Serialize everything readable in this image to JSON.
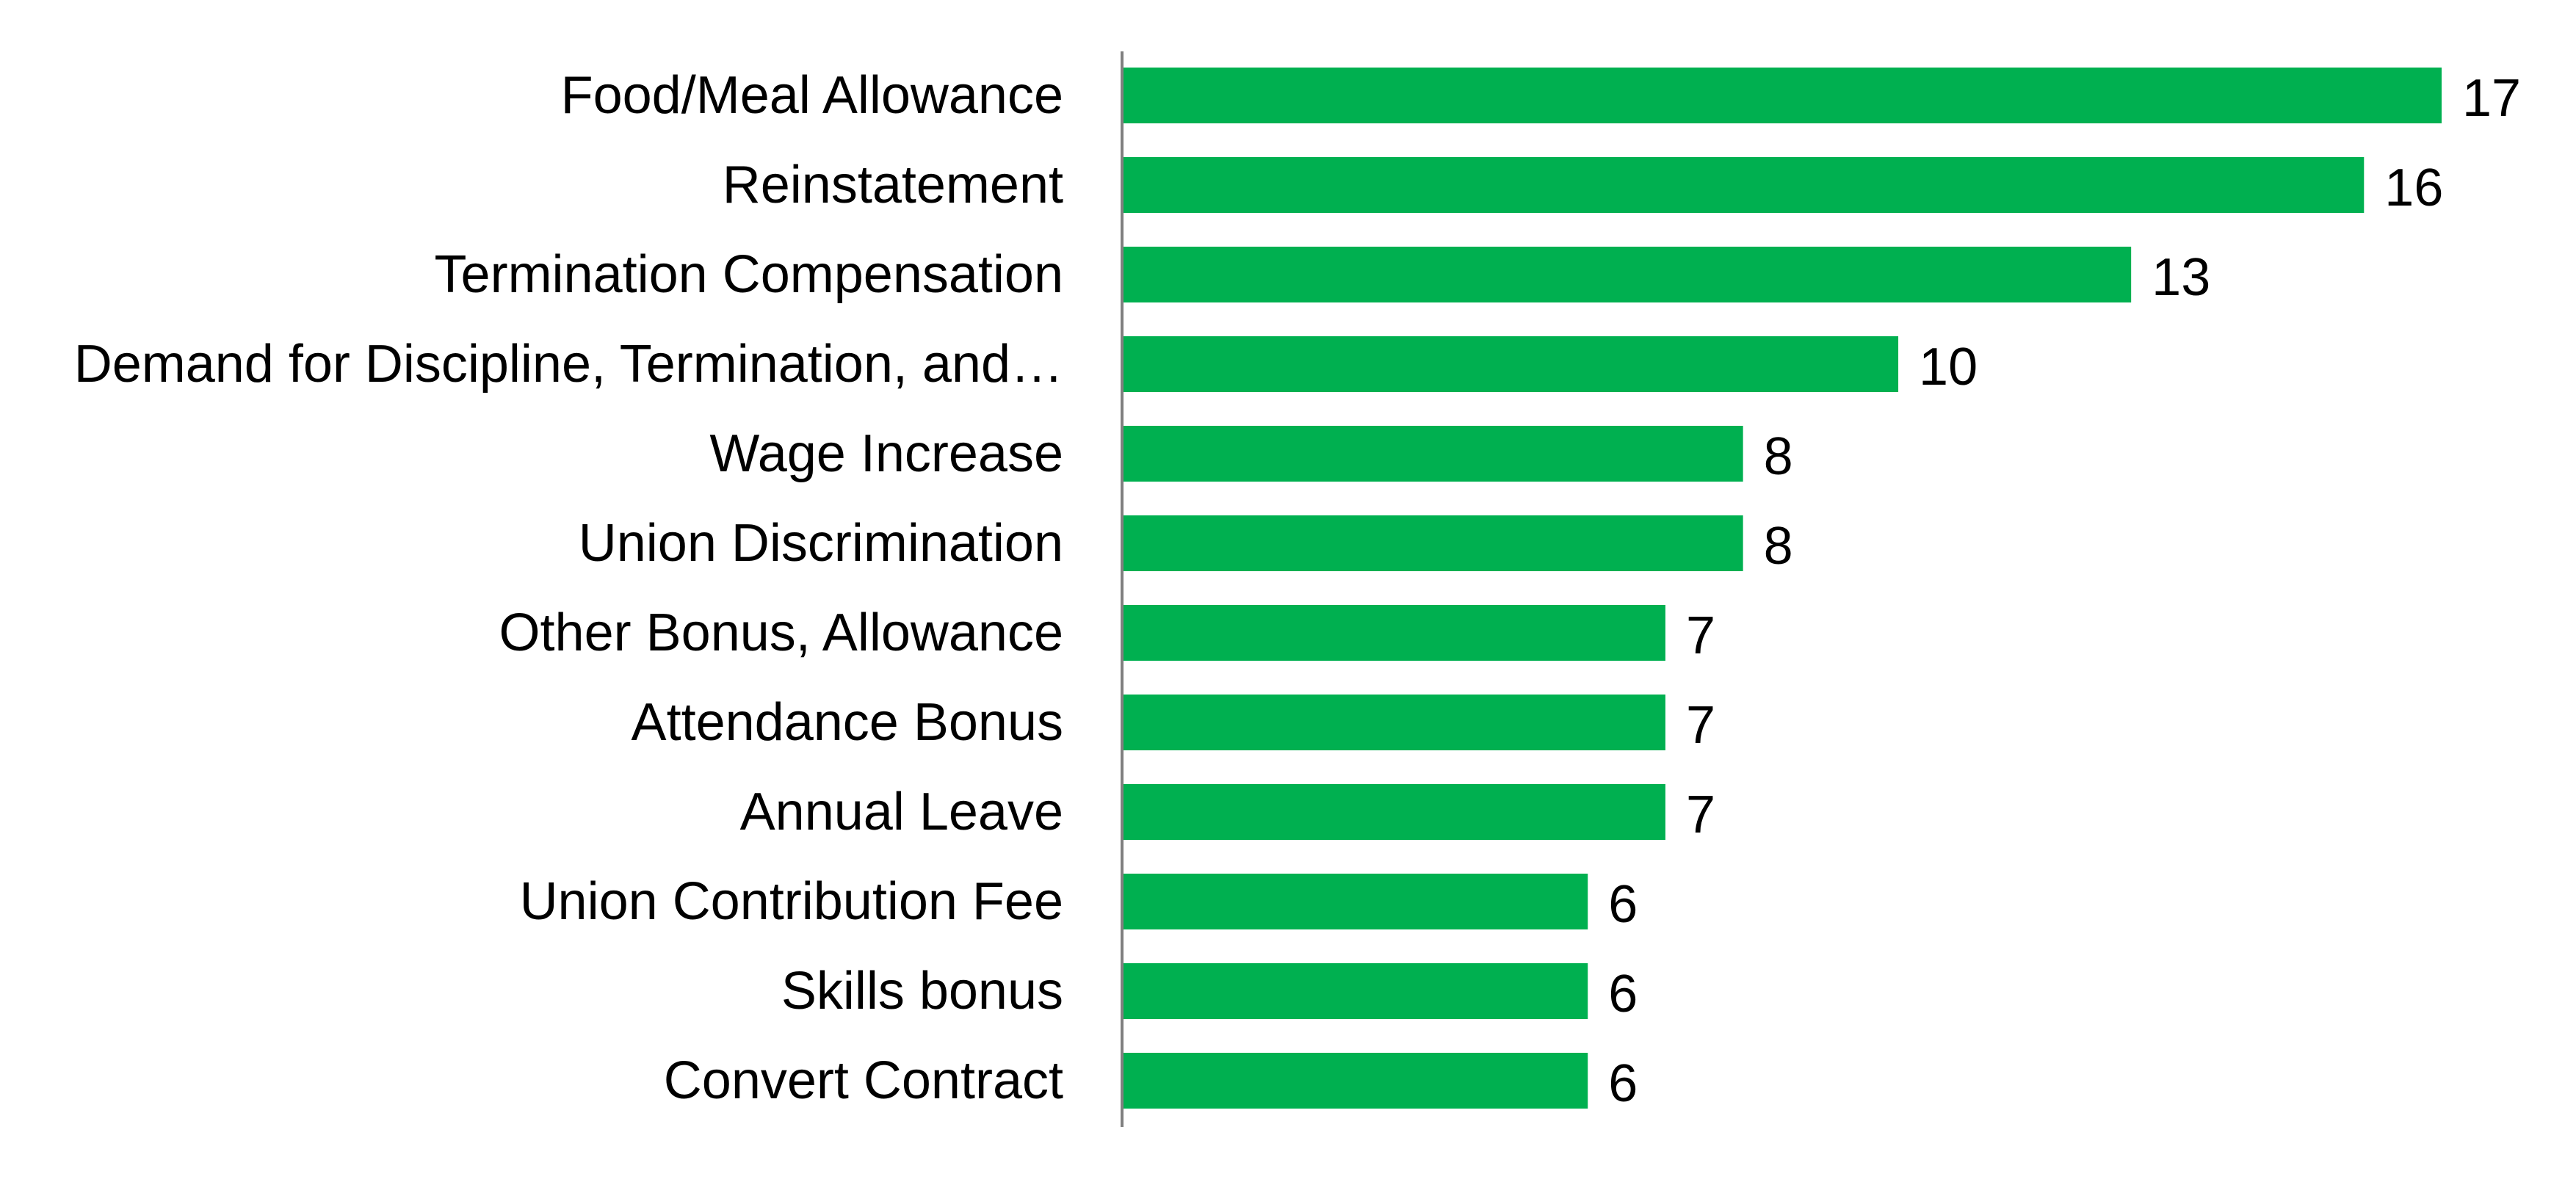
{
  "colors": {
    "bar": "#00b050",
    "axis": "#808080",
    "text": "#000000",
    "background": "#ffffff"
  },
  "chart_data": {
    "type": "bar",
    "orientation": "horizontal",
    "categories": [
      "Food/Meal Allowance",
      "Reinstatement",
      "Termination Compensation",
      "Demand for Discipline, Termination, and…",
      "Wage Increase",
      "Union Discrimination",
      "Other Bonus, Allowance",
      "Attendance Bonus",
      "Annual Leave",
      "Union Contribution Fee",
      "Skills bonus",
      "Convert Contract"
    ],
    "values": [
      17,
      16,
      13,
      10,
      8,
      8,
      7,
      7,
      7,
      6,
      6,
      6
    ],
    "data_labels": [
      "17",
      "16",
      "13",
      "10",
      "8",
      "8",
      "7",
      "7",
      "7",
      "6",
      "6",
      "6"
    ],
    "xlim": [
      0,
      17
    ],
    "grid": false,
    "legend": "none",
    "title": "",
    "xlabel": "",
    "ylabel": ""
  }
}
